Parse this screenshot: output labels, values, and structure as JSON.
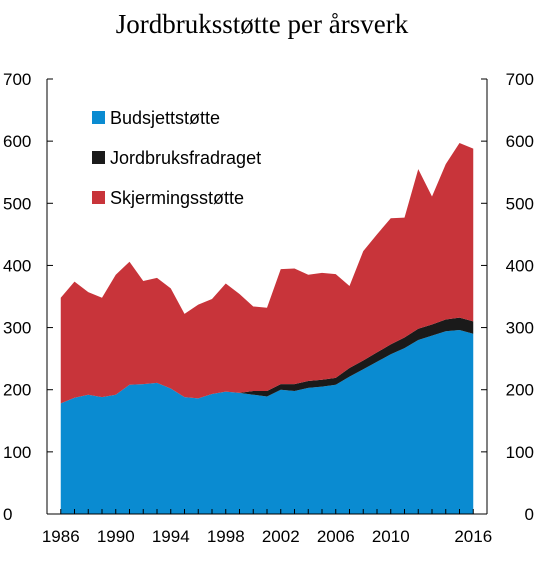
{
  "chart_data": {
    "type": "area",
    "stacked": true,
    "title": "Jordbruksstøtte per årsverk",
    "xlabel": "",
    "ylabel": "",
    "xlim": [
      1985,
      2017
    ],
    "ylim": [
      0,
      700
    ],
    "x_ticks": [
      1986,
      1990,
      1994,
      1998,
      2002,
      2006,
      2010,
      2016
    ],
    "y_ticks": [
      0,
      100,
      200,
      300,
      400,
      500,
      600,
      700
    ],
    "grid": false,
    "legend_position": "top-left",
    "x": [
      1986,
      1987,
      1988,
      1989,
      1990,
      1991,
      1992,
      1993,
      1994,
      1995,
      1996,
      1997,
      1998,
      1999,
      2000,
      2001,
      2002,
      2003,
      2004,
      2005,
      2006,
      2007,
      2008,
      2009,
      2010,
      2011,
      2012,
      2013,
      2014,
      2015,
      2016
    ],
    "series": [
      {
        "name": "Budsjettstøtte",
        "color": "#0a8bd1",
        "values": [
          178,
          187,
          192,
          188,
          192,
          208,
          209,
          211,
          202,
          188,
          186,
          193,
          197,
          195,
          192,
          189,
          200,
          198,
          203,
          205,
          208,
          221,
          233,
          245,
          257,
          267,
          280,
          287,
          294,
          296,
          290
        ]
      },
      {
        "name": "Jordbruksfradraget",
        "color": "#1a1a1a",
        "values": [
          0,
          0,
          0,
          0,
          0,
          0,
          0,
          0,
          0,
          0,
          0,
          0,
          0,
          0,
          6,
          9,
          9,
          11,
          11,
          11,
          11,
          14,
          14,
          15,
          16,
          17,
          18,
          18,
          19,
          20,
          20
        ]
      },
      {
        "name": "Skjermingsstøtte",
        "color": "#c8343a",
        "values": [
          170,
          187,
          165,
          160,
          193,
          198,
          166,
          169,
          161,
          134,
          151,
          153,
          174,
          159,
          136,
          134,
          185,
          186,
          171,
          172,
          167,
          132,
          176,
          190,
          203,
          193,
          257,
          206,
          250,
          281,
          278
        ]
      }
    ]
  }
}
